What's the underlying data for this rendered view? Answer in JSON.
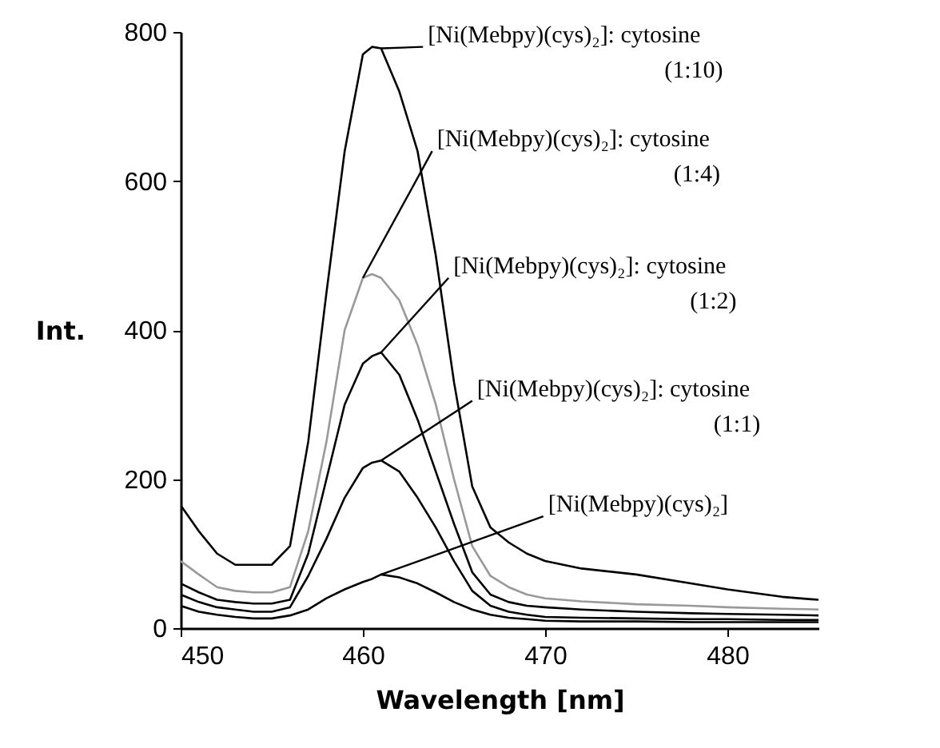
{
  "chart_data": {
    "type": "line",
    "xlabel": "Wavelength [nm]",
    "ylabel": "Int.",
    "x": [
      450,
      451,
      452,
      453,
      454,
      455,
      456,
      457,
      458,
      459,
      460,
      460.5,
      461,
      462,
      463,
      464,
      465,
      466,
      467,
      468,
      469,
      470,
      472,
      475,
      478,
      480,
      483,
      485
    ],
    "series": [
      {
        "name": "[Ni(Mebpy)(cys)₂]: cytosine\n(1:10)",
        "color": "#000000",
        "values": [
          165,
          130,
          100,
          85,
          85,
          85,
          110,
          250,
          450,
          640,
          770,
          780,
          778,
          720,
          640,
          500,
          330,
          190,
          135,
          115,
          100,
          90,
          80,
          72,
          60,
          52,
          42,
          38
        ]
      },
      {
        "name": "[Ni(Mebpy)(cys)₂]: cytosine\n(1:4)",
        "color": "#999999",
        "values": [
          90,
          72,
          55,
          50,
          48,
          48,
          55,
          130,
          250,
          400,
          470,
          475,
          470,
          440,
          380,
          300,
          200,
          110,
          70,
          55,
          45,
          40,
          36,
          32,
          30,
          28,
          26,
          25
        ]
      },
      {
        "name": "[Ni(Mebpy)(cys)₂]: cytosine\n(1:2)",
        "color": "#000000",
        "values": [
          60,
          48,
          38,
          35,
          33,
          33,
          38,
          100,
          200,
          300,
          355,
          365,
          370,
          340,
          280,
          210,
          140,
          75,
          45,
          35,
          30,
          28,
          25,
          22,
          20,
          19,
          18,
          17
        ]
      },
      {
        "name": "[Ni(Mebpy)(cys)₂]: cytosine\n(1:1)",
        "color": "#000000",
        "values": [
          45,
          35,
          28,
          25,
          22,
          22,
          28,
          70,
          120,
          175,
          215,
          222,
          225,
          210,
          175,
          135,
          90,
          50,
          30,
          22,
          18,
          15,
          14,
          13,
          12,
          12,
          11,
          11
        ]
      },
      {
        "name": "[Ni(Mebpy)(cys)₂]",
        "color": "#000000",
        "values": [
          30,
          22,
          18,
          15,
          13,
          13,
          17,
          25,
          40,
          52,
          62,
          66,
          72,
          68,
          60,
          48,
          35,
          25,
          18,
          14,
          12,
          10,
          9,
          9,
          8,
          8,
          8,
          8
        ]
      }
    ],
    "xlim": [
      450,
      485
    ],
    "ylim": [
      0,
      800
    ],
    "xticks": [
      450,
      460,
      470,
      480
    ],
    "yticks": [
      0,
      200,
      400,
      600,
      800
    ],
    "grid": false,
    "legend": false,
    "marker": "none",
    "line_style": "solid"
  }
}
